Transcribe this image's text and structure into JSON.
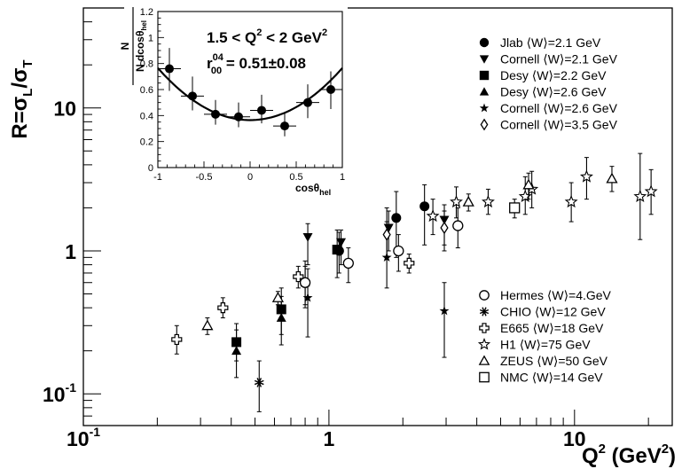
{
  "chart_data": {
    "type": "scatter",
    "xlabel": "Q",
    "xlabel_sup": "2",
    "xlabel_unit": " (GeV",
    "xlabel_unit_sup": "2",
    "xlabel_unit_close": ")",
    "ylabel_parts": [
      "R=σ",
      "L",
      "/σ",
      "T"
    ],
    "xscale": "log",
    "yscale": "log",
    "xlim": [
      0.1,
      25
    ],
    "ylim": [
      0.06,
      50
    ],
    "x_ticks": [
      {
        "v": 0.1,
        "base": "10",
        "sup": "-1"
      },
      {
        "v": 1,
        "base": "1",
        "sup": ""
      },
      {
        "v": 10,
        "base": "10",
        "sup": ""
      }
    ],
    "y_ticks": [
      {
        "v": 0.1,
        "base": "10",
        "sup": "-1"
      },
      {
        "v": 1,
        "base": "1",
        "sup": ""
      },
      {
        "v": 10,
        "base": "10",
        "sup": ""
      }
    ],
    "legend_top": [
      {
        "label": "Jlab ⟨W⟩=2.1 GeV",
        "marker": "circle-filled"
      },
      {
        "label": "Cornell ⟨W⟩=2.1 GeV",
        "marker": "triangle-down-filled"
      },
      {
        "label": "Desy ⟨W⟩=2.2 GeV",
        "marker": "square-filled"
      },
      {
        "label": "Desy ⟨W⟩=2.6 GeV",
        "marker": "triangle-up-filled"
      },
      {
        "label": "Cornell ⟨W⟩=2.6 GeV",
        "marker": "star-filled"
      },
      {
        "label": "Cornell ⟨W⟩=3.5 GeV",
        "marker": "diamond-open"
      }
    ],
    "legend_bottom": [
      {
        "label": "Hermes ⟨W⟩=4.GeV",
        "marker": "circle-open"
      },
      {
        "label": "CHIO ⟨W⟩=12 GeV",
        "marker": "asterisk"
      },
      {
        "label": "E665 ⟨W⟩=18 GeV",
        "marker": "cross-open"
      },
      {
        "label": "H1 ⟨W⟩=75 GeV",
        "marker": "star-open"
      },
      {
        "label": "ZEUS ⟨W⟩=50 GeV",
        "marker": "triangle-up-open"
      },
      {
        "label": "NMC ⟨W⟩=14 GeV",
        "marker": "square-open"
      }
    ],
    "series": [
      {
        "name": "Jlab ⟨W⟩=2.1 GeV",
        "marker": "circle-filled",
        "points": [
          {
            "x": 1.1,
            "y": 1.0,
            "lo": 0.7,
            "hi": 1.35
          },
          {
            "x": 1.88,
            "y": 1.7,
            "lo": 0.9,
            "hi": 2.6
          },
          {
            "x": 2.45,
            "y": 2.05,
            "lo": 1.1,
            "hi": 2.9
          }
        ]
      },
      {
        "name": "Cornell ⟨W⟩=2.1 GeV",
        "marker": "triangle-down-filled",
        "points": [
          {
            "x": 0.82,
            "y": 1.25,
            "lo": 0.8,
            "hi": 1.55
          },
          {
            "x": 1.12,
            "y": 1.15,
            "lo": 0.8,
            "hi": 1.4
          },
          {
            "x": 1.75,
            "y": 1.45,
            "lo": 1.0,
            "hi": 1.9
          },
          {
            "x": 2.95,
            "y": 1.65,
            "lo": 1.1,
            "hi": 2.1
          }
        ]
      },
      {
        "name": "Desy ⟨W⟩=2.2 GeV",
        "marker": "square-filled",
        "points": [
          {
            "x": 0.42,
            "y": 0.23,
            "lo": 0.17,
            "hi": 0.31
          },
          {
            "x": 0.64,
            "y": 0.39,
            "lo": 0.26,
            "hi": 0.55
          },
          {
            "x": 1.08,
            "y": 1.02,
            "lo": 0.65,
            "hi": 1.4
          }
        ]
      },
      {
        "name": "Desy ⟨W⟩=2.6 GeV",
        "marker": "triangle-up-filled",
        "points": [
          {
            "x": 0.42,
            "y": 0.2,
            "lo": 0.13,
            "hi": 0.28
          },
          {
            "x": 0.64,
            "y": 0.34,
            "lo": 0.22,
            "hi": 0.48
          },
          {
            "x": 0.8,
            "y": 0.6,
            "lo": 0.4,
            "hi": 0.85
          }
        ]
      },
      {
        "name": "Cornell ⟨W⟩=2.6 GeV",
        "marker": "star-filled",
        "points": [
          {
            "x": 0.82,
            "y": 0.47,
            "lo": 0.25,
            "hi": 0.75
          },
          {
            "x": 1.72,
            "y": 0.9,
            "lo": 0.55,
            "hi": 1.6
          },
          {
            "x": 2.95,
            "y": 0.38,
            "lo": 0.18,
            "hi": 0.6
          }
        ]
      },
      {
        "name": "Cornell ⟨W⟩=3.5 GeV",
        "marker": "diamond-open",
        "points": [
          {
            "x": 1.72,
            "y": 1.3,
            "lo": 0.9,
            "hi": 2.0
          },
          {
            "x": 2.95,
            "y": 1.45,
            "lo": 1.0,
            "hi": 1.9
          }
        ]
      },
      {
        "name": "Hermes ⟨W⟩=4.GeV",
        "marker": "circle-open",
        "points": [
          {
            "x": 0.8,
            "y": 0.6,
            "lo": 0.42,
            "hi": 0.78
          },
          {
            "x": 1.2,
            "y": 0.82,
            "lo": 0.6,
            "hi": 1.05
          },
          {
            "x": 1.92,
            "y": 1.0,
            "lo": 0.72,
            "hi": 1.3
          },
          {
            "x": 3.35,
            "y": 1.5,
            "lo": 1.05,
            "hi": 2.0
          }
        ]
      },
      {
        "name": "CHIO ⟨W⟩=12 GeV",
        "marker": "asterisk",
        "points": [
          {
            "x": 0.52,
            "y": 0.12,
            "lo": 0.075,
            "hi": 0.17
          }
        ]
      },
      {
        "name": "E665 ⟨W⟩=18 GeV",
        "marker": "cross-open",
        "points": [
          {
            "x": 0.24,
            "y": 0.24,
            "lo": 0.19,
            "hi": 0.3
          },
          {
            "x": 0.37,
            "y": 0.4,
            "lo": 0.34,
            "hi": 0.47
          },
          {
            "x": 0.75,
            "y": 0.66,
            "lo": 0.55,
            "hi": 0.78
          },
          {
            "x": 2.12,
            "y": 0.82,
            "lo": 0.7,
            "hi": 0.95
          }
        ]
      },
      {
        "name": "H1 ⟨W⟩=75 GeV",
        "marker": "star-open",
        "points": [
          {
            "x": 2.65,
            "y": 1.75,
            "lo": 1.3,
            "hi": 2.3
          },
          {
            "x": 3.3,
            "y": 2.2,
            "lo": 1.7,
            "hi": 2.8
          },
          {
            "x": 4.45,
            "y": 2.2,
            "lo": 1.8,
            "hi": 2.7
          },
          {
            "x": 6.3,
            "y": 2.4,
            "lo": 1.8,
            "hi": 3.3
          },
          {
            "x": 6.7,
            "y": 2.7,
            "lo": 2.0,
            "hi": 3.6
          },
          {
            "x": 9.7,
            "y": 2.2,
            "lo": 1.6,
            "hi": 3.0
          },
          {
            "x": 11.2,
            "y": 3.3,
            "lo": 2.3,
            "hi": 4.5
          },
          {
            "x": 18.5,
            "y": 2.4,
            "lo": 1.2,
            "hi": 4.8
          },
          {
            "x": 20.5,
            "y": 2.6,
            "lo": 1.8,
            "hi": 3.7
          }
        ]
      },
      {
        "name": "ZEUS ⟨W⟩=50 GeV",
        "marker": "triangle-up-open",
        "points": [
          {
            "x": 0.32,
            "y": 0.3,
            "lo": 0.26,
            "hi": 0.34
          },
          {
            "x": 0.62,
            "y": 0.47,
            "lo": 0.42,
            "hi": 0.52
          },
          {
            "x": 3.7,
            "y": 2.2,
            "lo": 1.9,
            "hi": 2.5
          },
          {
            "x": 6.5,
            "y": 2.9,
            "lo": 2.3,
            "hi": 3.5
          },
          {
            "x": 14.2,
            "y": 3.2,
            "lo": 2.6,
            "hi": 3.9
          }
        ]
      },
      {
        "name": "NMC ⟨W⟩=14 GeV",
        "marker": "square-open",
        "points": [
          {
            "x": 5.7,
            "y": 2.0,
            "lo": 1.7,
            "hi": 2.3
          }
        ]
      }
    ],
    "inset": {
      "type": "scatter",
      "annotation_line1": "1.5 < Q",
      "annotation_line1_sup": "2",
      "annotation_line1_end": " < 2 GeV",
      "annotation_line1_end_sup": "2",
      "annotation_r": "r",
      "annotation_r_sup": "04",
      "annotation_r_sub": "00",
      "annotation_r_value": " = 0.51±0.08",
      "ylabel_num": "N",
      "ylabel_den": "N dcosθ",
      "ylabel_den_sub": "hel",
      "xlabel": "cosθ",
      "xlabel_sub": "hel",
      "xlim": [
        -1,
        1
      ],
      "ylim": [
        0,
        1.2
      ],
      "x_ticks": [
        "-1",
        "-0.5",
        "0",
        "0.5",
        "1"
      ],
      "x_tick_values": [
        -1,
        -0.5,
        0,
        0.5,
        1
      ],
      "y_ticks": [
        "0",
        "0.2",
        "0.4",
        "0.6",
        "0.8",
        "1",
        "1.2"
      ],
      "y_tick_values": [
        0,
        0.2,
        0.4,
        0.6,
        0.8,
        1.0,
        1.2
      ],
      "points": [
        {
          "x": -0.875,
          "y": 0.76,
          "ex": 0.125,
          "lo": 0.59,
          "hi": 0.92
        },
        {
          "x": -0.625,
          "y": 0.55,
          "ex": 0.125,
          "lo": 0.44,
          "hi": 0.7
        },
        {
          "x": -0.375,
          "y": 0.41,
          "ex": 0.125,
          "lo": 0.33,
          "hi": 0.52
        },
        {
          "x": -0.125,
          "y": 0.39,
          "ex": 0.125,
          "lo": 0.31,
          "hi": 0.5
        },
        {
          "x": 0.125,
          "y": 0.44,
          "ex": 0.125,
          "lo": 0.34,
          "hi": 0.56
        },
        {
          "x": 0.375,
          "y": 0.32,
          "ex": 0.125,
          "lo": 0.24,
          "hi": 0.42
        },
        {
          "x": 0.625,
          "y": 0.5,
          "ex": 0.125,
          "lo": 0.38,
          "hi": 0.64
        },
        {
          "x": 0.875,
          "y": 0.6,
          "ex": 0.125,
          "lo": 0.45,
          "hi": 0.74
        }
      ],
      "fit_curve": {
        "a": 0.365,
        "b": 0.4
      }
    }
  }
}
